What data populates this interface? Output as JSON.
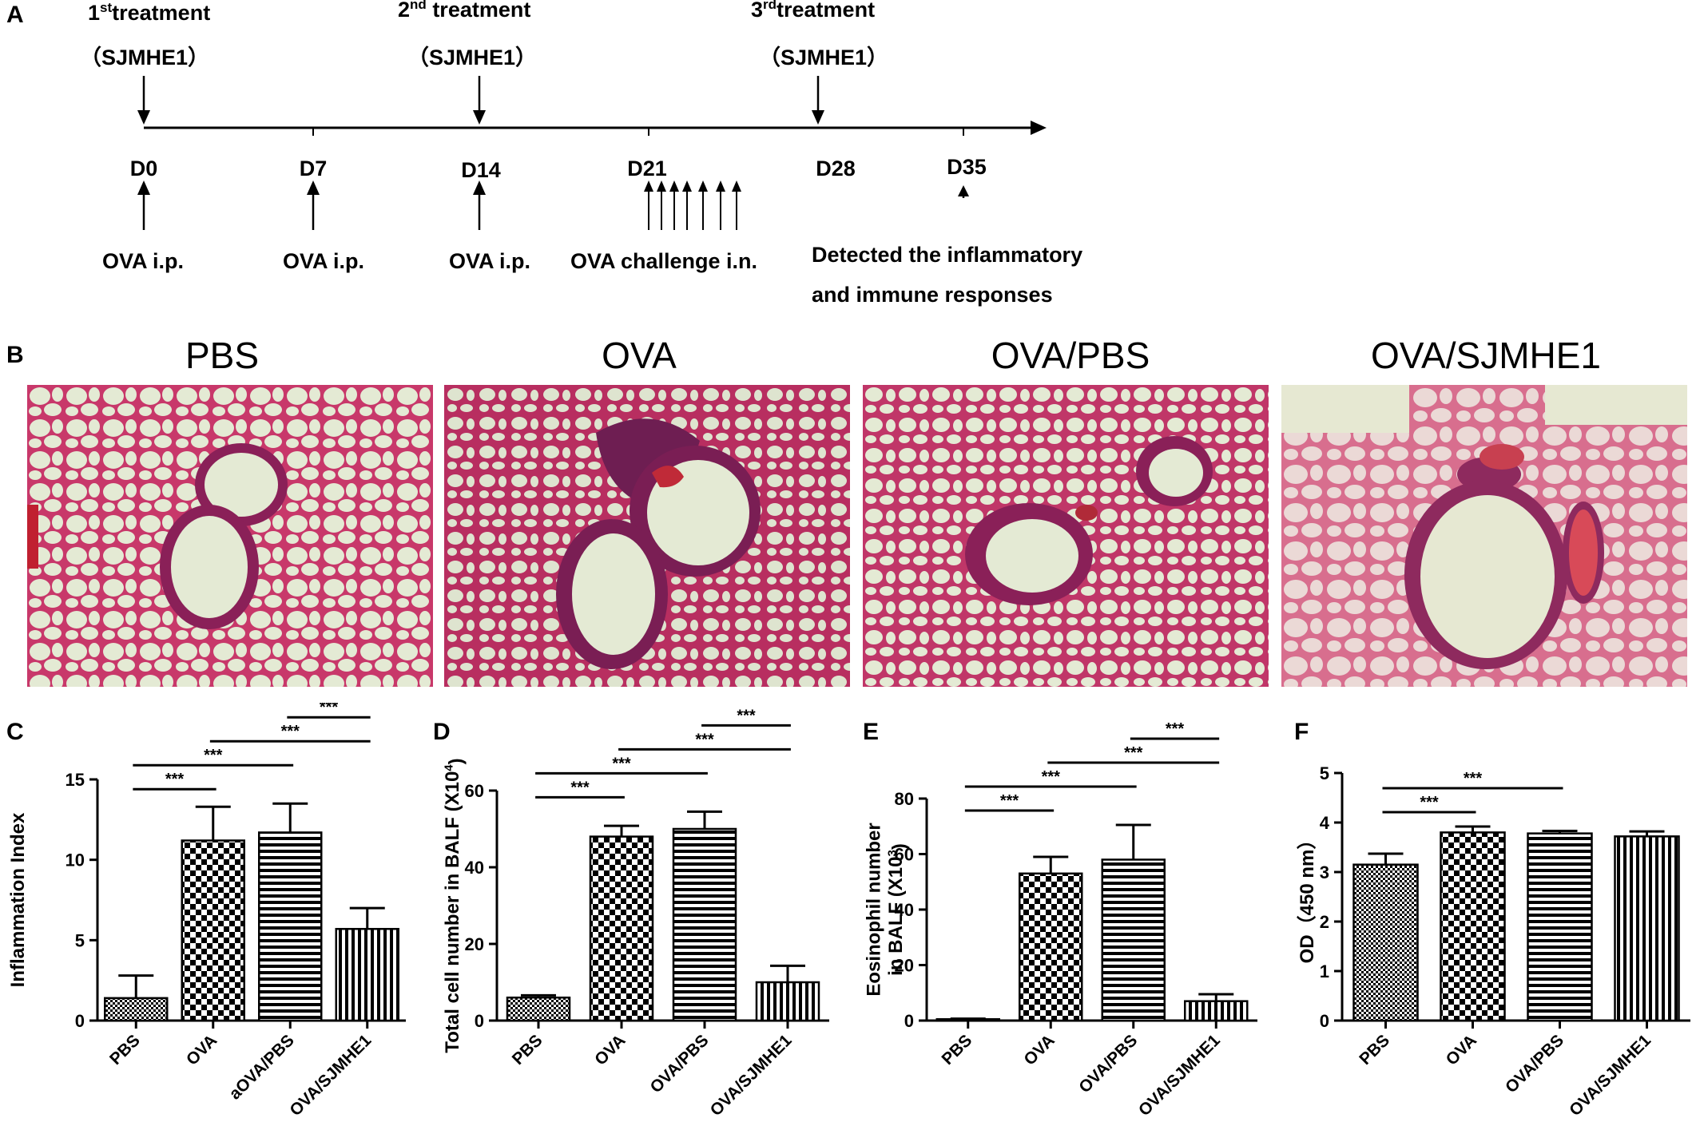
{
  "panel_labels": [
    "A",
    "B",
    "C",
    "D",
    "E",
    "F"
  ],
  "timeline": {
    "treatments": [
      {
        "ordinal": "1",
        "sup": "st",
        "word": "treatment",
        "agent": "（SJMHE1）"
      },
      {
        "ordinal": "2",
        "sup": "nd",
        "word": " treatment",
        "agent": "（SJMHE1）"
      },
      {
        "ordinal": "3",
        "sup": "rd",
        "word": "treatment",
        "agent": "（SJMHE1）"
      }
    ],
    "days": [
      "D0",
      "D7",
      "D14",
      "D21",
      "D28",
      "D35"
    ],
    "events": [
      "OVA i.p.",
      "OVA i.p.",
      "OVA i.p.",
      "OVA challenge i.n."
    ],
    "detection_lines": [
      "Detected the inflammatory",
      "and immune responses"
    ]
  },
  "histology": {
    "titles": [
      "PBS",
      "OVA",
      "OVA/PBS",
      "OVA/SJMHE1"
    ]
  },
  "chart_data": [
    {
      "panel": "C",
      "type": "bar",
      "categories": [
        "PBS",
        "OVA",
        "aOVA/PBS",
        "OVA/SJMHE1"
      ],
      "values": [
        1.4,
        11.2,
        11.7,
        5.7
      ],
      "errors": [
        1.4,
        2.1,
        1.8,
        1.3
      ],
      "ylabel": "Inflammation Index",
      "ylabel_sup": "",
      "ylabel_line2": "",
      "ylim": [
        0,
        15
      ],
      "yticks": [
        0,
        5,
        10,
        15
      ],
      "patterns": [
        "dots",
        "checker",
        "hlines",
        "vlines"
      ],
      "significance": [
        {
          "from": 0,
          "to": 1,
          "label": "***"
        },
        {
          "from": 0,
          "to": 2,
          "label": "***"
        },
        {
          "from": 1,
          "to": 3,
          "label": "***"
        },
        {
          "from": 2,
          "to": 3,
          "label": "***"
        }
      ]
    },
    {
      "panel": "D",
      "type": "bar",
      "categories": [
        "PBS",
        "OVA",
        "OVA/PBS",
        "OVA/SJMHE1"
      ],
      "values": [
        6,
        48,
        50,
        10
      ],
      "errors": [
        0.6,
        2.8,
        4.5,
        4.3
      ],
      "ylabel": "Total cell number in BALF (X10",
      "ylabel_sup": "4",
      "ylabel_close": ")",
      "ylabel_line2": "",
      "ylim": [
        0,
        60
      ],
      "yticks": [
        0,
        20,
        40,
        60
      ],
      "patterns": [
        "dots",
        "checker",
        "hlines",
        "vlines"
      ],
      "significance": [
        {
          "from": 0,
          "to": 1,
          "label": "***"
        },
        {
          "from": 0,
          "to": 2,
          "label": "***"
        },
        {
          "from": 1,
          "to": 3,
          "label": "***"
        },
        {
          "from": 2,
          "to": 3,
          "label": "***"
        }
      ]
    },
    {
      "panel": "E",
      "type": "bar",
      "categories": [
        "PBS",
        "OVA",
        "OVA/PBS",
        "OVA/SJMHE1"
      ],
      "values": [
        0.5,
        53,
        58,
        7
      ],
      "errors": [
        0.2,
        6,
        12.5,
        2.5
      ],
      "ylabel": "Eosinophil number",
      "ylabel_sup": "3",
      "ylabel_line2": "in BALF (X10",
      "ylabel_close": ")",
      "ylim": [
        0,
        80
      ],
      "yticks": [
        0,
        20,
        40,
        60,
        80
      ],
      "patterns": [
        "dots",
        "checker",
        "hlines",
        "vlines"
      ],
      "significance": [
        {
          "from": 0,
          "to": 1,
          "label": "***"
        },
        {
          "from": 0,
          "to": 2,
          "label": "***"
        },
        {
          "from": 1,
          "to": 3,
          "label": "***"
        },
        {
          "from": 2,
          "to": 3,
          "label": "***"
        }
      ]
    },
    {
      "panel": "F",
      "type": "bar",
      "categories": [
        "PBS",
        "OVA",
        "OVA/PBS",
        "OVA/SJMHE1"
      ],
      "values": [
        3.15,
        3.8,
        3.78,
        3.72
      ],
      "errors": [
        0.22,
        0.12,
        0.05,
        0.1
      ],
      "ylabel": "OD（450 nm）",
      "ylabel_sup": "",
      "ylabel_line2": "",
      "ylim": [
        0,
        5
      ],
      "yticks": [
        0,
        1,
        2,
        3,
        4,
        5
      ],
      "patterns": [
        "dots",
        "checker",
        "hlines",
        "vlines"
      ],
      "significance": [
        {
          "from": 0,
          "to": 1,
          "label": "***"
        },
        {
          "from": 0,
          "to": 2,
          "label": "***"
        }
      ]
    }
  ]
}
